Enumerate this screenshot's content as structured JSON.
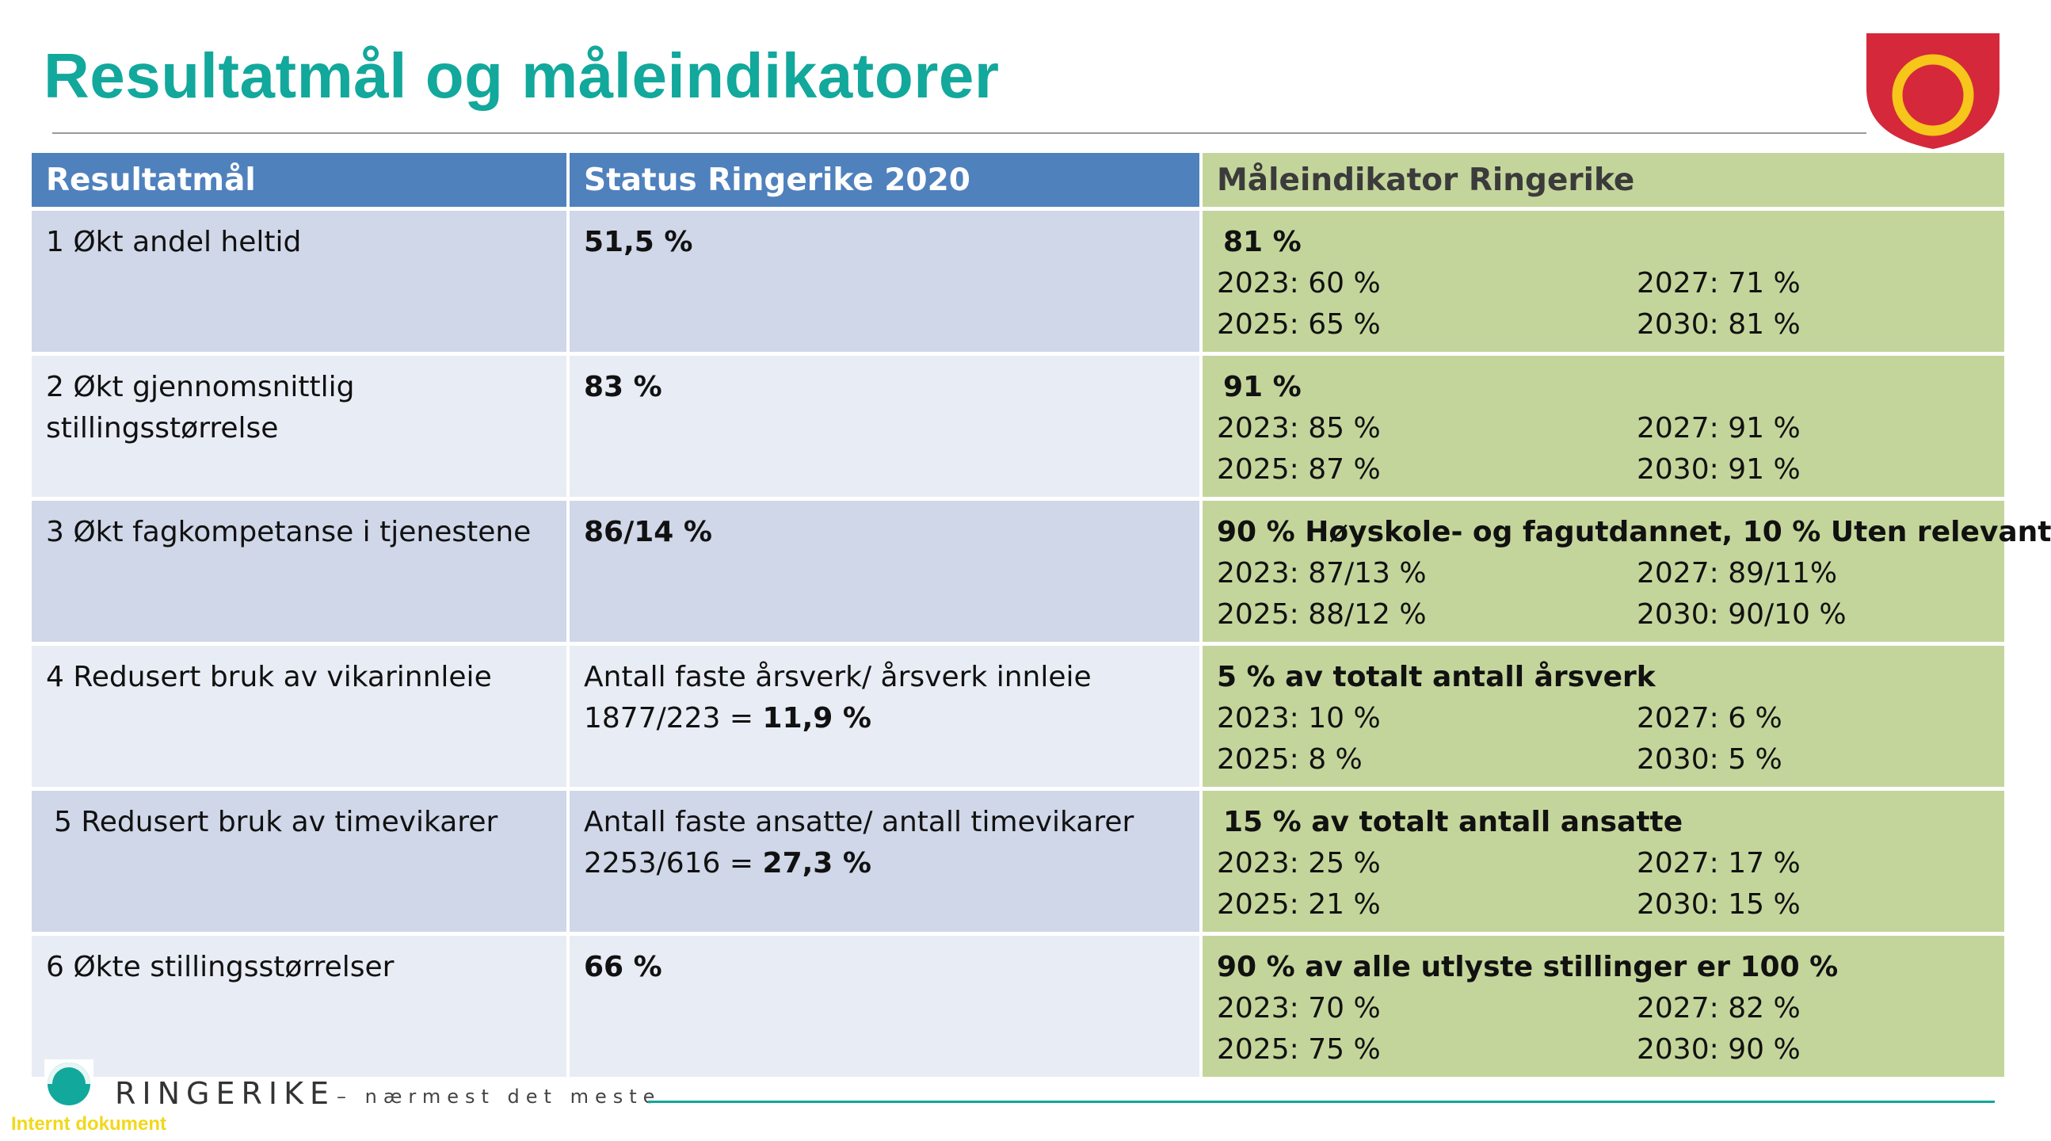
{
  "title": "Resultatmål og måleindikatorer",
  "table": {
    "headers": [
      "Resultatmål",
      "Status Ringerike 2020",
      "Måleindikator Ringerike"
    ],
    "rows": [
      {
        "goal": "1 Økt andel heltid",
        "status": "51,5 %",
        "target": "81 %",
        "years": [
          "2023: 60 %",
          "2027: 71 %",
          "2025: 65 %",
          "2030: 81 %"
        ]
      },
      {
        "goal": "2 Økt gjennomsnittlig\nstillingsstørrelse",
        "status": "83 %",
        "target": "91 %",
        "years": [
          "2023: 85 %",
          "2027: 91 %",
          "2025: 87 %",
          "2030: 91 %"
        ]
      },
      {
        "goal": "3 Økt fagkompetanse i tjenestene",
        "status": "86/14 %",
        "target": "90 % Høyskole- og fagutdannet, 10 % Uten relevant",
        "years": [
          "2023: 87/13 %",
          "2027: 89/11%",
          "2025: 88/12 %",
          "2030: 90/10 %"
        ]
      },
      {
        "goal": "4 Redusert bruk av vikarinnleie",
        "status_line1": "Antall faste årsverk/ årsverk innleie",
        "status_prefix": "1877/223 = ",
        "status_value": "11,9 %",
        "target": "5 % av totalt antall årsverk",
        "years": [
          "2023: 10 %",
          "2027: 6 %",
          "2025: 8 %",
          "2030: 5 %"
        ]
      },
      {
        "goal": "5 Redusert bruk av timevikarer",
        "status_line1": "Antall faste ansatte/ antall timevikarer",
        "status_prefix": "2253/616 = ",
        "status_value": "27,3 %",
        "target": "15 % av totalt antall ansatte",
        "years": [
          "2023: 25 %",
          "2027: 17 %",
          "2025: 21 %",
          "2030: 15 %"
        ]
      },
      {
        "goal": "6 Økte stillingsstørrelser",
        "status": "66 %",
        "target": "90 % av alle utlyste stillinger er 100 %",
        "years": [
          "2023: 70 %",
          "2027: 82 %",
          "2025: 75 %",
          "2030: 90 %"
        ]
      }
    ]
  },
  "footer": {
    "brand": "RINGERIKE",
    "tagline": "– nærmest det meste",
    "internal": "Internt dokument"
  },
  "colors": {
    "title": "#12a89c",
    "header_blue": "#4f81bd",
    "indicator_green": "#c4d59b",
    "row_dark": "#cfd7e8",
    "row_light": "#e8ecf4",
    "crest_red": "#d5283a",
    "crest_ring": "#f6c61a"
  }
}
